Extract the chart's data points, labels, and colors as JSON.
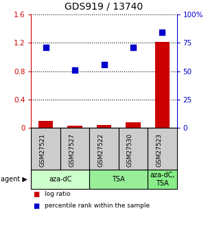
{
  "title": "GDS919 / 13740",
  "samples": [
    "GSM27521",
    "GSM27527",
    "GSM27522",
    "GSM27530",
    "GSM27523"
  ],
  "log_ratios": [
    0.1,
    0.035,
    0.04,
    0.08,
    1.21
  ],
  "percentile_ranks": [
    71,
    51,
    56,
    71,
    84
  ],
  "bar_color": "#cc0000",
  "dot_color": "#0000cc",
  "ylim_left": [
    0,
    1.6
  ],
  "ylim_right": [
    0,
    100
  ],
  "yticks_left": [
    0,
    0.4,
    0.8,
    1.2,
    1.6
  ],
  "ytick_labels_left": [
    "0",
    "0.4",
    "0.8",
    "1.2",
    "1.6"
  ],
  "yticks_right": [
    0,
    25,
    50,
    75,
    100
  ],
  "ytick_labels_right": [
    "0",
    "25",
    "50",
    "75",
    "100%"
  ],
  "agent_groups": [
    {
      "label": "aza-dC",
      "start": 0,
      "end": 2,
      "color": "#ccffcc"
    },
    {
      "label": "TSA",
      "start": 2,
      "end": 4,
      "color": "#99ee99"
    },
    {
      "label": "aza-dC,\nTSA",
      "start": 4,
      "end": 5,
      "color": "#88ee88"
    }
  ],
  "legend_red_label": "log ratio",
  "legend_blue_label": "percentile rank within the sample",
  "agent_label": "agent",
  "background_color": "#ffffff",
  "sample_box_color": "#cccccc",
  "left_axis_color": "#cc0000",
  "right_axis_color": "#0000cc"
}
